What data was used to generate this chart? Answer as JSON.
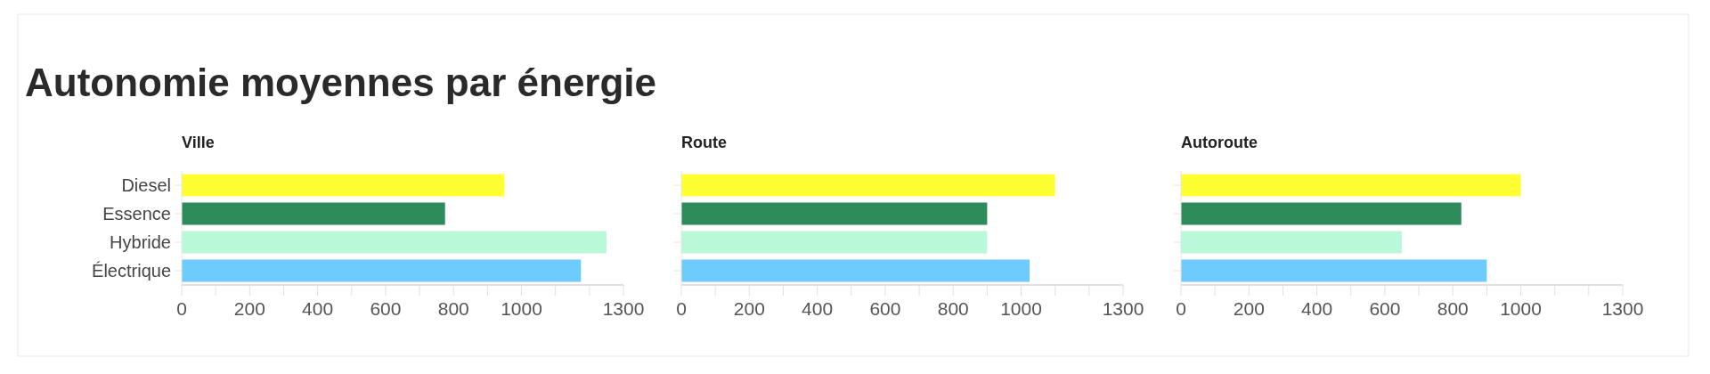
{
  "chart_data": [
    {
      "type": "bar",
      "orientation": "horizontal",
      "title": "Autonomie moyennes par énergie",
      "subtitle": "Ville",
      "categories": [
        "Diesel",
        "Essence",
        "Hybride",
        "Électrique"
      ],
      "values": [
        950,
        775,
        1250,
        1175
      ],
      "colors": [
        "#fffe33",
        "#2e8b5a",
        "#b9f8d8",
        "#6dcbfd"
      ],
      "xlim": [
        0,
        1300
      ],
      "xticks": [
        0,
        {
          "value": 100,
          "label": null
        },
        200,
        {
          "value": 300,
          "label": null
        },
        400,
        {
          "value": 500,
          "label": null
        },
        600,
        {
          "value": 700,
          "label": null
        },
        800,
        {
          "value": 900,
          "label": null
        },
        1000,
        {
          "value": 1100,
          "label": null
        },
        {
          "value": 1200,
          "label": null
        },
        1300
      ]
    },
    {
      "type": "bar",
      "orientation": "horizontal",
      "subtitle": "Route",
      "categories": [
        null,
        null,
        null,
        null
      ],
      "values": [
        1100,
        900,
        900,
        1025
      ],
      "colors": [
        "#fffe33",
        "#2e8b5a",
        "#b9f8d8",
        "#6dcbfd"
      ],
      "xlim": [
        0,
        1300
      ],
      "xticks": [
        0,
        {
          "value": 100,
          "label": null
        },
        200,
        {
          "value": 300,
          "label": null
        },
        400,
        {
          "value": 500,
          "label": null
        },
        600,
        {
          "value": 700,
          "label": null
        },
        800,
        {
          "value": 900,
          "label": null
        },
        1000,
        {
          "value": 1100,
          "label": null
        },
        {
          "value": 1200,
          "label": null
        },
        1300
      ],
      "tick_labels": "x"
    },
    {
      "type": "bar",
      "orientation": "horizontal",
      "subtitle": "Autoroute",
      "categories": [
        null,
        null,
        null,
        null
      ],
      "values": [
        1000,
        825,
        650,
        900
      ],
      "colors": [
        "#fffe33",
        "#2e8b5a",
        "#b9f8d8",
        "#6dcbfd"
      ],
      "xlim": [
        0,
        1300
      ],
      "xticks": [
        0,
        {
          "value": 100,
          "label": null
        },
        200,
        {
          "value": 300,
          "label": null
        },
        400,
        {
          "value": 500,
          "label": null
        },
        600,
        {
          "value": 700,
          "label": null
        },
        800,
        {
          "value": 900,
          "label": null
        },
        1000,
        {
          "value": 1100,
          "label": null
        },
        {
          "value": 1200,
          "label": null
        },
        1300
      ],
      "tick_labels": "x"
    }
  ]
}
